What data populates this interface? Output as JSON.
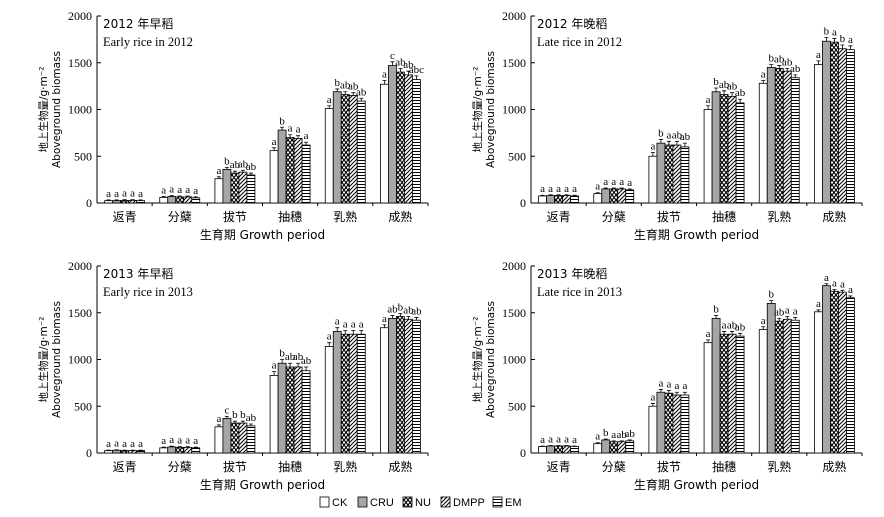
{
  "chart_data": [
    {
      "type": "bar",
      "title": "2012 年早稻",
      "subtitle": "Early rice in 2012",
      "xlabel": "生育期 Growth period",
      "ylabel": "地上生物量/g·m⁻²",
      "ylabel_en": "Aboveground biomass",
      "ylim": [
        0,
        2000
      ],
      "yticks": [
        "0",
        "500",
        "1000",
        "1500",
        "2000"
      ],
      "categories": [
        "返青",
        "分蘖",
        "拔节",
        "抽穗",
        "乳熟",
        "成熟"
      ],
      "series": [
        {
          "name": "CK",
          "values": [
            25,
            60,
            260,
            560,
            1010,
            1270
          ],
          "err": [
            8,
            10,
            20,
            30,
            30,
            40
          ],
          "letters": [
            "a",
            "a",
            "a",
            "a",
            "a",
            "a"
          ]
        },
        {
          "name": "CRU",
          "values": [
            25,
            70,
            360,
            780,
            1190,
            1470
          ],
          "err": [
            8,
            10,
            20,
            30,
            30,
            40
          ],
          "letters": [
            "a",
            "a",
            "b",
            "b",
            "b",
            "c"
          ]
        },
        {
          "name": "NU",
          "values": [
            28,
            65,
            320,
            700,
            1160,
            1400
          ],
          "err": [
            8,
            10,
            20,
            30,
            30,
            40
          ],
          "letters": [
            "a",
            "a",
            "ab",
            "a",
            "ab",
            "ab"
          ]
        },
        {
          "name": "DMPP",
          "values": [
            28,
            65,
            330,
            690,
            1150,
            1370
          ],
          "err": [
            8,
            10,
            20,
            30,
            30,
            40
          ],
          "letters": [
            "a",
            "a",
            "ab",
            "a",
            "ab",
            "ab"
          ]
        },
        {
          "name": "EM",
          "values": [
            25,
            55,
            300,
            620,
            1090,
            1320
          ],
          "err": [
            8,
            10,
            20,
            30,
            30,
            40
          ],
          "letters": [
            "a",
            "a",
            "ab",
            "a",
            "ab",
            "abc"
          ]
        }
      ]
    },
    {
      "type": "bar",
      "title": "2012 年晚稻",
      "subtitle": "Late rice in 2012",
      "xlabel": "生育期 Growth period",
      "ylabel": "地上生物量/g·m⁻²",
      "ylabel_en": "Aboveground biomass",
      "ylim": [
        0,
        2000
      ],
      "yticks": [
        "0",
        "500",
        "1000",
        "1500",
        "2000"
      ],
      "categories": [
        "返青",
        "分蘖",
        "拔节",
        "抽穗",
        "乳熟",
        "成熟"
      ],
      "series": [
        {
          "name": "CK",
          "values": [
            75,
            100,
            500,
            1000,
            1280,
            1480
          ],
          "err": [
            8,
            10,
            40,
            40,
            30,
            40
          ],
          "letters": [
            "a",
            "a",
            "a",
            "a",
            "a",
            "a"
          ]
        },
        {
          "name": "CRU",
          "values": [
            80,
            150,
            640,
            1190,
            1450,
            1730
          ],
          "err": [
            8,
            10,
            40,
            40,
            30,
            40
          ],
          "letters": [
            "a",
            "a",
            "b",
            "b",
            "b",
            "b"
          ]
        },
        {
          "name": "NU",
          "values": [
            80,
            150,
            620,
            1160,
            1440,
            1720
          ],
          "err": [
            8,
            10,
            40,
            40,
            30,
            40
          ],
          "letters": [
            "a",
            "a",
            "a",
            "ab",
            "ab",
            "a"
          ]
        },
        {
          "name": "DMPP",
          "values": [
            80,
            150,
            620,
            1140,
            1410,
            1650
          ],
          "err": [
            8,
            10,
            40,
            40,
            30,
            40
          ],
          "letters": [
            "a",
            "a",
            "ab",
            "ab",
            "ab",
            "b"
          ]
        },
        {
          "name": "EM",
          "values": [
            75,
            140,
            600,
            1070,
            1340,
            1640
          ],
          "err": [
            8,
            10,
            40,
            40,
            30,
            40
          ],
          "letters": [
            "a",
            "a",
            "ab",
            "ab",
            "ab",
            "a"
          ]
        }
      ]
    },
    {
      "type": "bar",
      "title": "2013 年早稻",
      "subtitle": "Early rice in 2013",
      "xlabel": "生育期 Growth period",
      "ylabel": "地上生物量/g·m⁻²",
      "ylabel_en": "Aboveground biomass",
      "ylim": [
        0,
        2000
      ],
      "yticks": [
        "0",
        "500",
        "1000",
        "1500",
        "2000"
      ],
      "categories": [
        "返青",
        "分蘖",
        "拔节",
        "抽穗",
        "乳熟",
        "成熟"
      ],
      "series": [
        {
          "name": "CK",
          "values": [
            25,
            55,
            280,
            830,
            1140,
            1340
          ],
          "err": [
            5,
            8,
            20,
            40,
            40,
            30
          ],
          "letters": [
            "a",
            "a",
            "a",
            "a",
            "a",
            "a"
          ]
        },
        {
          "name": "CRU",
          "values": [
            30,
            65,
            370,
            960,
            1300,
            1440
          ],
          "err": [
            5,
            8,
            20,
            40,
            40,
            30
          ],
          "letters": [
            "a",
            "a",
            "c",
            "b",
            "a",
            "ab"
          ]
        },
        {
          "name": "NU",
          "values": [
            25,
            60,
            320,
            920,
            1270,
            1460
          ],
          "err": [
            5,
            8,
            20,
            40,
            40,
            30
          ],
          "letters": [
            "a",
            "a",
            "b",
            "ab",
            "a",
            "b"
          ]
        },
        {
          "name": "DMPP",
          "values": [
            25,
            60,
            320,
            920,
            1270,
            1430
          ],
          "err": [
            5,
            8,
            20,
            40,
            40,
            30
          ],
          "letters": [
            "a",
            "a",
            "b",
            "ab",
            "a",
            "ab"
          ]
        },
        {
          "name": "EM",
          "values": [
            25,
            55,
            290,
            880,
            1270,
            1420
          ],
          "err": [
            5,
            8,
            20,
            40,
            40,
            30
          ],
          "letters": [
            "a",
            "a",
            "ab",
            "ab",
            "a",
            "ab"
          ]
        }
      ]
    },
    {
      "type": "bar",
      "title": "2013 年晚稻",
      "subtitle": "Late rice in 2013",
      "xlabel": "生育期 Growth period",
      "ylabel": "地上生物量/g·m⁻²",
      "ylabel_en": "Aboveground biomass",
      "ylim": [
        0,
        2000
      ],
      "yticks": [
        "0",
        "500",
        "1000",
        "1500",
        "2000"
      ],
      "categories": [
        "返青",
        "分蘖",
        "拔节",
        "抽穗",
        "乳熟",
        "成熟"
      ],
      "series": [
        {
          "name": "CK",
          "values": [
            70,
            100,
            500,
            1180,
            1320,
            1510
          ],
          "err": [
            5,
            10,
            30,
            30,
            30,
            20
          ],
          "letters": [
            "a",
            "a",
            "a",
            "a",
            "a",
            "a"
          ]
        },
        {
          "name": "CRU",
          "values": [
            75,
            140,
            650,
            1440,
            1600,
            1790
          ],
          "err": [
            5,
            10,
            30,
            30,
            30,
            20
          ],
          "letters": [
            "a",
            "b",
            "a",
            "b",
            "b",
            "a"
          ]
        },
        {
          "name": "NU",
          "values": [
            75,
            120,
            640,
            1270,
            1410,
            1730
          ],
          "err": [
            5,
            10,
            30,
            30,
            30,
            20
          ],
          "letters": [
            "a",
            "a",
            "a",
            "a",
            "ab",
            "a"
          ]
        },
        {
          "name": "DMPP",
          "values": [
            75,
            120,
            620,
            1270,
            1430,
            1720
          ],
          "err": [
            5,
            10,
            30,
            30,
            30,
            20
          ],
          "letters": [
            "a",
            "ab",
            "a",
            "ab",
            "a",
            "a"
          ]
        },
        {
          "name": "EM",
          "values": [
            70,
            130,
            620,
            1250,
            1420,
            1660
          ],
          "err": [
            5,
            10,
            30,
            30,
            30,
            20
          ],
          "letters": [
            "a",
            "ab",
            "a",
            "ab",
            "a",
            "a"
          ]
        }
      ]
    }
  ],
  "legend": [
    {
      "name": "CK",
      "pattern": "plain"
    },
    {
      "name": "CRU",
      "pattern": "gray"
    },
    {
      "name": "NU",
      "pattern": "zigzag"
    },
    {
      "name": "DMPP",
      "pattern": "diagonal"
    },
    {
      "name": "EM",
      "pattern": "horizontal"
    }
  ],
  "colors": {
    "axis": "#000000",
    "cru_fill": "#a6a6a6",
    "bar_stroke": "#000000"
  }
}
